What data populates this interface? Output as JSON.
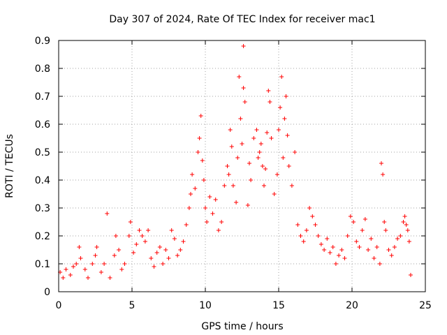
{
  "chart_data": {
    "type": "scatter",
    "title": "Day 307 of 2024, Rate Of TEC Index for receiver mac1",
    "xlabel": "GPS time / hours",
    "ylabel": "ROTI / TECUs",
    "xlim": [
      0,
      25
    ],
    "ylim": [
      0,
      0.9
    ],
    "grid": true,
    "marker": "+",
    "color": "#ff0000",
    "x_ticks": [
      "0",
      "5",
      "10",
      "15",
      "20",
      "25"
    ],
    "y_ticks": [
      "0",
      "0.1",
      "0.2",
      "0.3",
      "0.4",
      "0.5",
      "0.6",
      "0.7",
      "0.8",
      "0.9"
    ],
    "x_tick_values": [
      0,
      5,
      10,
      15,
      20,
      25
    ],
    "y_tick_values": [
      0,
      0.1,
      0.2,
      0.3,
      0.4,
      0.5,
      0.6,
      0.7,
      0.8,
      0.9
    ],
    "series": [
      {
        "points": [
          [
            0.1,
            0.07
          ],
          [
            0.3,
            0.05
          ],
          [
            0.5,
            0.08
          ],
          [
            0.8,
            0.06
          ],
          [
            1.0,
            0.09
          ],
          [
            1.2,
            0.1
          ],
          [
            1.4,
            0.16
          ],
          [
            1.5,
            0.12
          ],
          [
            1.8,
            0.08
          ],
          [
            2.0,
            0.05
          ],
          [
            2.3,
            0.1
          ],
          [
            2.5,
            0.13
          ],
          [
            2.6,
            0.16
          ],
          [
            2.9,
            0.07
          ],
          [
            3.1,
            0.1
          ],
          [
            3.3,
            0.28
          ],
          [
            3.5,
            0.05
          ],
          [
            3.8,
            0.13
          ],
          [
            3.9,
            0.2
          ],
          [
            4.1,
            0.15
          ],
          [
            4.3,
            0.08
          ],
          [
            4.5,
            0.1
          ],
          [
            4.8,
            0.2
          ],
          [
            4.9,
            0.25
          ],
          [
            5.1,
            0.14
          ],
          [
            5.3,
            0.17
          ],
          [
            5.5,
            0.22
          ],
          [
            5.7,
            0.2
          ],
          [
            5.9,
            0.18
          ],
          [
            6.1,
            0.22
          ],
          [
            6.3,
            0.12
          ],
          [
            6.5,
            0.09
          ],
          [
            6.7,
            0.14
          ],
          [
            6.9,
            0.16
          ],
          [
            7.1,
            0.1
          ],
          [
            7.3,
            0.15
          ],
          [
            7.5,
            0.12
          ],
          [
            7.7,
            0.22
          ],
          [
            7.9,
            0.19
          ],
          [
            8.1,
            0.13
          ],
          [
            8.3,
            0.15
          ],
          [
            8.5,
            0.18
          ],
          [
            8.7,
            0.24
          ],
          [
            8.9,
            0.3
          ],
          [
            9.0,
            0.35
          ],
          [
            9.1,
            0.42
          ],
          [
            9.3,
            0.37
          ],
          [
            9.5,
            0.5
          ],
          [
            9.6,
            0.55
          ],
          [
            9.7,
            0.63
          ],
          [
            9.8,
            0.47
          ],
          [
            9.9,
            0.4
          ],
          [
            10.0,
            0.3
          ],
          [
            10.1,
            0.25
          ],
          [
            10.3,
            0.34
          ],
          [
            10.5,
            0.28
          ],
          [
            10.7,
            0.33
          ],
          [
            10.9,
            0.22
          ],
          [
            11.1,
            0.25
          ],
          [
            11.3,
            0.38
          ],
          [
            11.5,
            0.45
          ],
          [
            11.6,
            0.42
          ],
          [
            11.7,
            0.58
          ],
          [
            11.8,
            0.52
          ],
          [
            11.9,
            0.38
          ],
          [
            12.1,
            0.32
          ],
          [
            12.2,
            0.48
          ],
          [
            12.3,
            0.77
          ],
          [
            12.4,
            0.62
          ],
          [
            12.5,
            0.53
          ],
          [
            12.6,
            0.73
          ],
          [
            12.6,
            0.88
          ],
          [
            12.7,
            0.68
          ],
          [
            12.9,
            0.31
          ],
          [
            13.0,
            0.46
          ],
          [
            13.1,
            0.4
          ],
          [
            13.3,
            0.55
          ],
          [
            13.5,
            0.58
          ],
          [
            13.6,
            0.48
          ],
          [
            13.7,
            0.5
          ],
          [
            13.8,
            0.53
          ],
          [
            13.9,
            0.45
          ],
          [
            14.0,
            0.38
          ],
          [
            14.1,
            0.44
          ],
          [
            14.2,
            0.57
          ],
          [
            14.3,
            0.72
          ],
          [
            14.4,
            0.68
          ],
          [
            14.5,
            0.55
          ],
          [
            14.7,
            0.35
          ],
          [
            14.9,
            0.42
          ],
          [
            15.0,
            0.58
          ],
          [
            15.1,
            0.66
          ],
          [
            15.2,
            0.77
          ],
          [
            15.3,
            0.48
          ],
          [
            15.4,
            0.62
          ],
          [
            15.5,
            0.7
          ],
          [
            15.6,
            0.56
          ],
          [
            15.7,
            0.45
          ],
          [
            15.9,
            0.38
          ],
          [
            16.1,
            0.5
          ],
          [
            16.3,
            0.24
          ],
          [
            16.5,
            0.2
          ],
          [
            16.7,
            0.18
          ],
          [
            16.9,
            0.22
          ],
          [
            17.1,
            0.3
          ],
          [
            17.3,
            0.27
          ],
          [
            17.5,
            0.24
          ],
          [
            17.7,
            0.2
          ],
          [
            17.9,
            0.17
          ],
          [
            18.1,
            0.15
          ],
          [
            18.3,
            0.19
          ],
          [
            18.5,
            0.14
          ],
          [
            18.7,
            0.16
          ],
          [
            18.9,
            0.1
          ],
          [
            19.1,
            0.13
          ],
          [
            19.3,
            0.15
          ],
          [
            19.5,
            0.12
          ],
          [
            19.7,
            0.2
          ],
          [
            19.9,
            0.27
          ],
          [
            20.1,
            0.25
          ],
          [
            20.3,
            0.18
          ],
          [
            20.5,
            0.16
          ],
          [
            20.7,
            0.22
          ],
          [
            20.9,
            0.26
          ],
          [
            21.1,
            0.15
          ],
          [
            21.3,
            0.19
          ],
          [
            21.5,
            0.12
          ],
          [
            21.7,
            0.16
          ],
          [
            21.9,
            0.1
          ],
          [
            22.0,
            0.46
          ],
          [
            22.1,
            0.42
          ],
          [
            22.2,
            0.25
          ],
          [
            22.3,
            0.22
          ],
          [
            22.5,
            0.15
          ],
          [
            22.7,
            0.13
          ],
          [
            22.9,
            0.16
          ],
          [
            23.1,
            0.19
          ],
          [
            23.3,
            0.2
          ],
          [
            23.5,
            0.25
          ],
          [
            23.6,
            0.27
          ],
          [
            23.7,
            0.24
          ],
          [
            23.8,
            0.22
          ],
          [
            23.9,
            0.18
          ],
          [
            24.0,
            0.06
          ]
        ]
      }
    ]
  }
}
